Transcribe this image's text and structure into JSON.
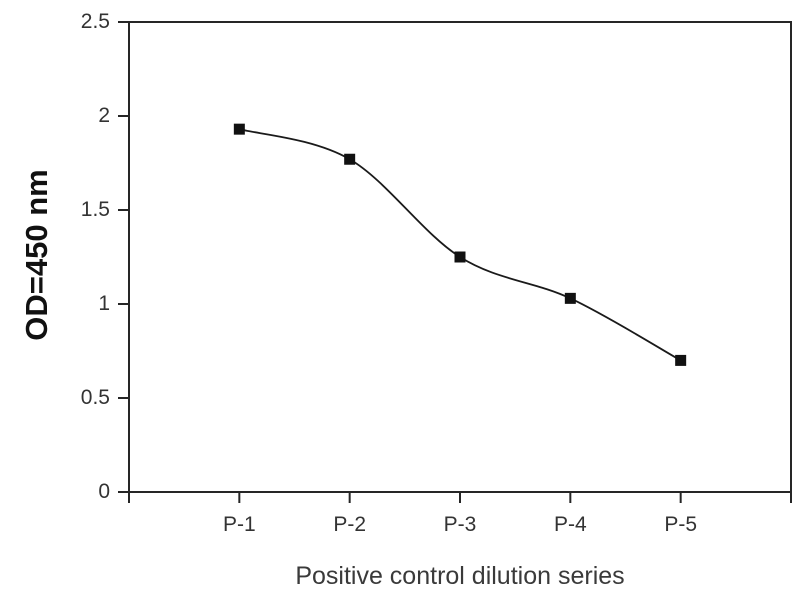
{
  "chart_data": {
    "type": "line",
    "title": "",
    "categories": [
      "P-1",
      "P-2",
      "P-3",
      "P-4",
      "P-5"
    ],
    "values": [
      1.93,
      1.77,
      1.25,
      1.03,
      0.7
    ],
    "series_name": "Positive control dilution series",
    "xlabel": "Positive control dilution series",
    "ylabel": "OD=450 nm",
    "ylim": [
      0,
      2.5
    ],
    "ytick_values": [
      0,
      0.5,
      1,
      1.5,
      2,
      2.5
    ],
    "ytick_labels": [
      "0",
      "0.5",
      "1",
      "1.5",
      "2",
      "2.5"
    ],
    "grid": false,
    "legend": "none",
    "marker": "square",
    "marker_size": 11,
    "line_smoothed": true,
    "colors": {
      "line": "#1a1a1a",
      "marker": "#111111",
      "axis": "#262626",
      "text": "#333333",
      "background": "#ffffff"
    }
  }
}
